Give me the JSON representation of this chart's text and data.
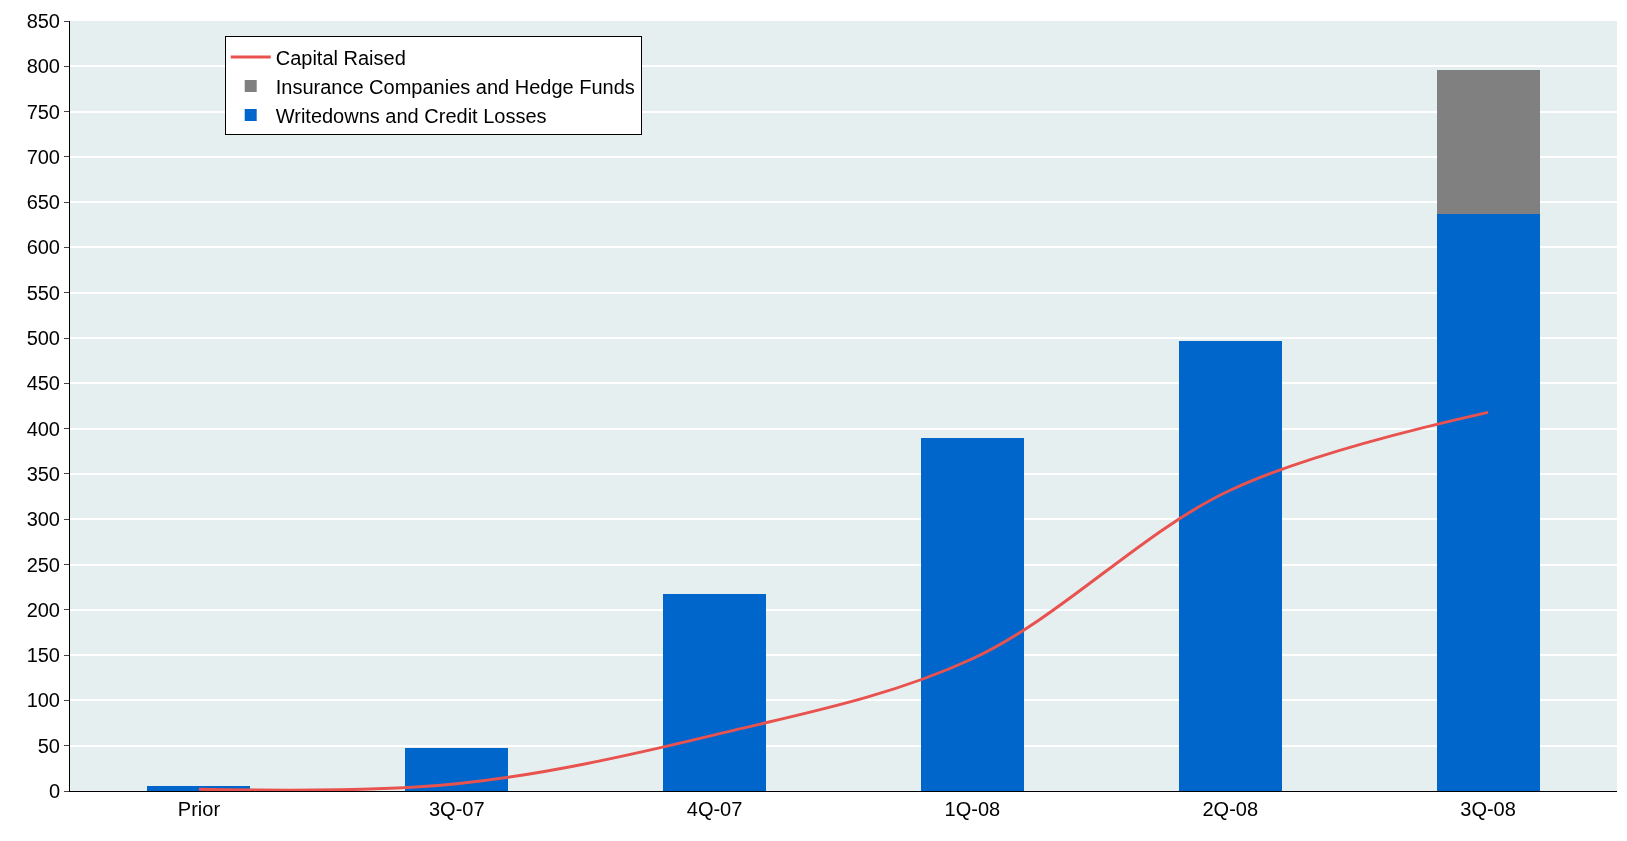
{
  "chart_data": {
    "type": "bar",
    "stacked": true,
    "categories": [
      "Prior",
      "3Q-07",
      "4Q-07",
      "1Q-08",
      "2Q-08",
      "3Q-08"
    ],
    "series": [
      {
        "name": "Writedowns and Credit Losses",
        "color": "#0066cc",
        "values": [
          5,
          47,
          218,
          390,
          497,
          637
        ]
      },
      {
        "name": "Insurance Companies and Hedge Funds",
        "color": "#808080",
        "values": [
          null,
          null,
          null,
          null,
          null,
          159
        ]
      },
      {
        "name": "Capital Raised",
        "color": "#e8524f",
        "type": "line",
        "values": [
          2,
          8,
          62,
          146,
          332,
          418
        ]
      }
    ],
    "ylim": [
      0,
      850
    ],
    "yticks": [
      0,
      50,
      100,
      150,
      200,
      250,
      300,
      350,
      400,
      450,
      500,
      550,
      600,
      650,
      700,
      750,
      800,
      850
    ],
    "grid": "y",
    "legend": "top left",
    "marker": "none"
  }
}
